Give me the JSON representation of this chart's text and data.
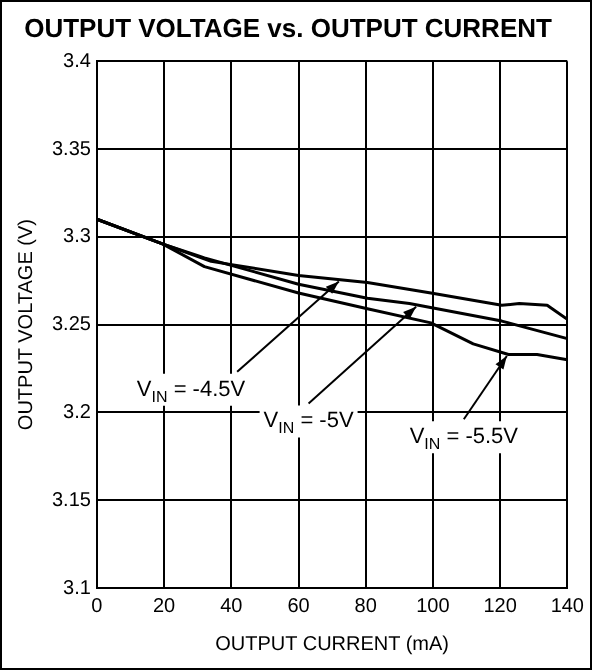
{
  "chart_data": {
    "type": "line",
    "title": "OUTPUT VOLTAGE vs. OUTPUT CURRENT",
    "xlabel": "OUTPUT CURRENT (mA)",
    "ylabel": "OUTPUT VOLTAGE (V)",
    "xlim": [
      0,
      140
    ],
    "xticks": [
      0,
      20,
      40,
      60,
      80,
      100,
      120,
      140
    ],
    "ylim": [
      3.1,
      3.4
    ],
    "yticks": [
      3.1,
      3.15,
      3.2,
      3.25,
      3.3,
      3.35,
      3.4
    ],
    "grid": true,
    "legend": false,
    "marker": "none",
    "line_style": "solid",
    "series": [
      {
        "name": "V$_{IN}$ = -4.5V",
        "color": "#000000",
        "x": [
          0,
          19.5,
          34,
          60,
          80.5,
          99.4,
          120.5,
          125.7,
          134,
          140
        ],
        "values": [
          3.31,
          3.296,
          3.286,
          3.278,
          3.274,
          3.268,
          3.261,
          3.262,
          3.261,
          3.253
        ]
      },
      {
        "name": "V$_{IN}$ = -5V",
        "color": "#000000",
        "x": [
          0,
          19.5,
          32,
          60,
          80.5,
          93,
          120.5,
          140
        ],
        "values": [
          3.31,
          3.296,
          3.288,
          3.273,
          3.265,
          3.262,
          3.252,
          3.242
        ]
      },
      {
        "name": "V$_{IN}$ = -5.5V",
        "color": "#000000",
        "x": [
          0,
          19.5,
          32,
          60,
          80.5,
          99.4,
          112,
          122.5,
          131,
          140
        ],
        "values": [
          3.31,
          3.296,
          3.283,
          3.268,
          3.259,
          3.251,
          3.239,
          3.233,
          3.233,
          3.23
        ]
      }
    ]
  }
}
